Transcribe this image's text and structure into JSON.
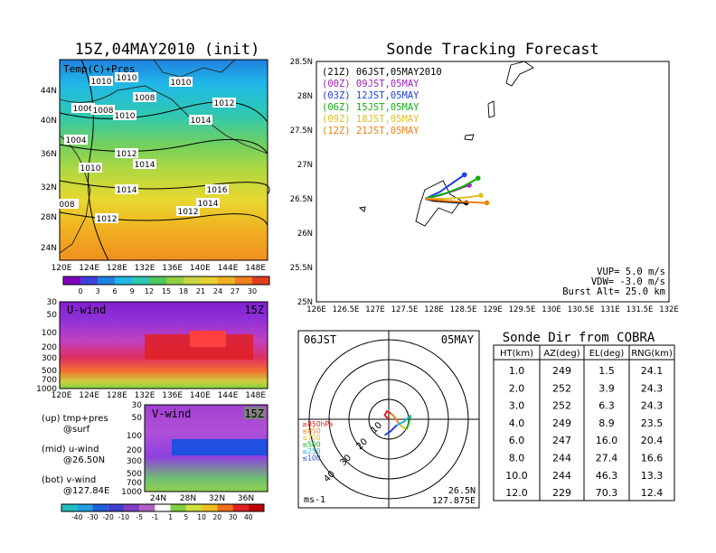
{
  "panels": {
    "map": {
      "title": "15Z,04MAY2010 (init)",
      "label": "Temp(C)+Pres",
      "lat_ticks": [
        "44N",
        "40N",
        "36N",
        "32N",
        "28N",
        "24N"
      ],
      "lon_ticks": [
        "120E",
        "124E",
        "128E",
        "132E",
        "136E",
        "140E",
        "144E",
        "148E"
      ],
      "isobars": [
        "1010",
        "1010",
        "1006",
        "1008",
        "1010",
        "1008",
        "1010",
        "1012",
        "1014",
        "1004",
        "1012",
        "1014",
        "1010",
        "1014",
        "1016",
        "1014",
        "008",
        "1012",
        "1012"
      ],
      "colorbar": [
        "0",
        "3",
        "6",
        "9",
        "12",
        "15",
        "18",
        "21",
        "24",
        "27",
        "30"
      ]
    },
    "uwind": {
      "label": "U-wind",
      "time": "15Z",
      "p_ticks": [
        "30",
        "50",
        "100",
        "200",
        "300",
        "500",
        "700",
        "1000"
      ],
      "lon_ticks": [
        "120E",
        "124E",
        "128E",
        "132E",
        "136E",
        "140E",
        "144E",
        "148E"
      ]
    },
    "vwind": {
      "label": "V-wind",
      "time": "15Z",
      "p_ticks": [
        "30",
        "50",
        "100",
        "200",
        "300",
        "500",
        "700",
        "1000"
      ],
      "lat_ticks": [
        "24N",
        "28N",
        "32N",
        "36N"
      ],
      "colorbar": [
        "-40",
        "-30",
        "-20",
        "-10",
        "-5",
        "-1",
        "1",
        "5",
        "10",
        "20",
        "30",
        "40"
      ]
    },
    "info": {
      "lines": [
        "(up) tmp+pres",
        "@surf",
        "(mid) u-wind",
        "@26.50N",
        "(bot) v-wind",
        "@127.84E"
      ]
    },
    "track": {
      "title": "Sonde Tracking Forecast",
      "legend": [
        {
          "text": "(21Z) 06JST,05MAY2010",
          "color": "#000000"
        },
        {
          "text": "(00Z) 09JST,05MAY",
          "color": "#a020c0"
        },
        {
          "text": "(03Z) 12JST,05MAY",
          "color": "#2040e0"
        },
        {
          "text": "(06Z) 15JST,05MAY",
          "color": "#10b010"
        },
        {
          "text": "(09Z) 18JST,05MAY",
          "color": "#e0c020"
        },
        {
          "text": "(12Z) 21JST,05MAY",
          "color": "#f08010"
        }
      ],
      "lat_ticks": [
        "28.5N",
        "28N",
        "27.5N",
        "27N",
        "26.5N",
        "26N",
        "25.5N",
        "25N"
      ],
      "lon_ticks": [
        "126E",
        "126.5E",
        "127E",
        "127.5E",
        "128E",
        "128.5E",
        "129E",
        "129.5E",
        "130E",
        "130.5E",
        "131E",
        "131.5E",
        "132E"
      ],
      "params": [
        "VUP= 5.0 m/s",
        "VDW= -3.0 m/s",
        "Burst Alt= 25.0 km"
      ]
    },
    "polar": {
      "time_label": "06JST",
      "date_label": "05MAY",
      "ring_labels": [
        "10",
        "20",
        "30",
        "40"
      ],
      "level_labels": [
        {
          "text": "≥850hPa",
          "color": "#e02020"
        },
        {
          "text": "≤850",
          "color": "#f08010"
        },
        {
          "text": "≤700",
          "color": "#e0c020"
        },
        {
          "text": "≤500",
          "color": "#10b010"
        },
        {
          "text": "≤250",
          "color": "#20b0e0"
        },
        {
          "text": "≤100",
          "color": "#2040e0"
        }
      ],
      "unit": "ms-1",
      "loc_lat": "26.5N",
      "loc_lon": "127.875E"
    },
    "table": {
      "title": "Sonde Dir from COBRA",
      "headers": [
        "HT(km)",
        "AZ(deg)",
        "EL(deg)",
        "RNG(km)"
      ],
      "rows": [
        [
          "1.0",
          "249",
          "1.5",
          "24.1"
        ],
        [
          "2.0",
          "252",
          "3.9",
          "24.3"
        ],
        [
          "3.0",
          "252",
          "6.3",
          "24.3"
        ],
        [
          "4.0",
          "249",
          "8.9",
          "23.5"
        ],
        [
          "6.0",
          "247",
          "16.0",
          "20.4"
        ],
        [
          "8.0",
          "244",
          "27.4",
          "16.6"
        ],
        [
          "10.0",
          "244",
          "46.3",
          "13.3"
        ],
        [
          "12.0",
          "229",
          "70.3",
          "12.4"
        ]
      ]
    }
  },
  "chart_data": [
    {
      "type": "heatmap",
      "title": "15Z,04MAY2010 (init)",
      "label": "Temp(C)+Pres",
      "xlim": [
        120,
        150
      ],
      "ylim": [
        22,
        48
      ],
      "colorbar_levels": [
        0,
        3,
        6,
        9,
        12,
        15,
        18,
        21,
        24,
        27,
        30
      ],
      "isobar_values": [
        1004,
        1006,
        1008,
        1010,
        1012,
        1014,
        1016
      ]
    },
    {
      "type": "heatmap",
      "label": "U-wind",
      "xlim": [
        120,
        150
      ],
      "ylim": [
        1000,
        30
      ]
    },
    {
      "type": "heatmap",
      "label": "V-wind",
      "xlim": [
        22,
        38
      ],
      "ylim": [
        1000,
        30
      ],
      "colorbar_levels": [
        -40,
        -30,
        -20,
        -10,
        -5,
        -1,
        1,
        5,
        10,
        20,
        30,
        40
      ]
    },
    {
      "type": "line",
      "title": "Sonde Tracking Forecast",
      "xlim": [
        126,
        132
      ],
      "ylim": [
        25,
        28.5
      ],
      "series": [
        {
          "name": "(21Z) 06JST,05MAY2010",
          "color": "#000000",
          "x": [
            127.85,
            128.0,
            128.3,
            128.55
          ],
          "y": [
            26.5,
            26.47,
            26.45,
            26.44
          ]
        },
        {
          "name": "(00Z) 09JST,05MAY",
          "color": "#a020c0",
          "x": [
            127.85,
            128.1,
            128.35,
            128.6
          ],
          "y": [
            26.5,
            26.55,
            26.62,
            26.7
          ]
        },
        {
          "name": "(03Z) 12JST,05MAY",
          "color": "#2040e0",
          "x": [
            127.85,
            128.1,
            128.35,
            128.52
          ],
          "y": [
            26.5,
            26.6,
            26.75,
            26.85
          ]
        },
        {
          "name": "(06Z) 15JST,05MAY",
          "color": "#10b010",
          "x": [
            127.85,
            128.2,
            128.5,
            128.75
          ],
          "y": [
            26.5,
            26.58,
            26.68,
            26.8
          ]
        },
        {
          "name": "(09Z) 18JST,05MAY",
          "color": "#e0c020",
          "x": [
            127.85,
            128.2,
            128.55,
            128.8
          ],
          "y": [
            26.5,
            26.5,
            26.52,
            26.55
          ]
        },
        {
          "name": "(12Z) 21JST,05MAY",
          "color": "#f08010",
          "x": [
            127.85,
            128.2,
            128.6,
            128.9
          ],
          "y": [
            26.5,
            26.47,
            26.45,
            26.44
          ]
        }
      ]
    },
    {
      "type": "scatter",
      "label": "06JST 05MAY",
      "ring_values": [
        10,
        20,
        30,
        40
      ],
      "hodograph": [
        {
          "level": "≥850hPa",
          "color": "#e02020",
          "u": [
            0,
            -2,
            -1,
            1
          ],
          "v": [
            0,
            2,
            4,
            3
          ]
        },
        {
          "level": "≤850",
          "color": "#f08010",
          "u": [
            1,
            3,
            5
          ],
          "v": [
            3,
            1,
            -2
          ]
        },
        {
          "level": "≤700",
          "color": "#e0c020",
          "u": [
            5,
            7,
            9
          ],
          "v": [
            -2,
            -4,
            -5
          ]
        },
        {
          "level": "≤500",
          "color": "#10b010",
          "u": [
            9,
            10,
            11
          ],
          "v": [
            -5,
            -2,
            2
          ]
        },
        {
          "level": "≤250",
          "color": "#20b0e0",
          "u": [
            11,
            8,
            4
          ],
          "v": [
            2,
            -1,
            -3
          ]
        },
        {
          "level": "≤100",
          "color": "#2040e0",
          "u": [
            4,
            1,
            -2
          ],
          "v": [
            -3,
            -6,
            -8
          ]
        }
      ]
    },
    {
      "type": "table",
      "title": "Sonde Dir from COBRA",
      "headers": [
        "HT(km)",
        "AZ(deg)",
        "EL(deg)",
        "RNG(km)"
      ],
      "rows": [
        [
          1.0,
          249,
          1.5,
          24.1
        ],
        [
          2.0,
          252,
          3.9,
          24.3
        ],
        [
          3.0,
          252,
          6.3,
          24.3
        ],
        [
          4.0,
          249,
          8.9,
          23.5
        ],
        [
          6.0,
          247,
          16.0,
          20.4
        ],
        [
          8.0,
          244,
          27.4,
          16.6
        ],
        [
          10.0,
          244,
          46.3,
          13.3
        ],
        [
          12.0,
          229,
          70.3,
          12.4
        ]
      ]
    }
  ]
}
